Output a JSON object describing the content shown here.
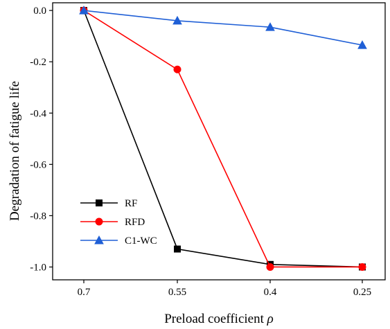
{
  "chart_data": {
    "type": "line",
    "title": "",
    "xlabel": "Preload coefficient",
    "xlabel_symbol": "ρ",
    "ylabel": "Degradation of fatigue life",
    "categories": [
      "0.7",
      "0.55",
      "0.4",
      "0.25"
    ],
    "yticks": [
      "0.0",
      "-0.2",
      "-0.4",
      "-0.6",
      "-0.8",
      "-1.0"
    ],
    "ylim": [
      -1.05,
      0.03
    ],
    "grid": false,
    "legend_position": "bottom-left",
    "series": [
      {
        "name": "RF",
        "color": "#000000",
        "marker": "square",
        "values": [
          0.0,
          -0.93,
          -0.99,
          -1.0
        ]
      },
      {
        "name": "RFD",
        "color": "#ff0000",
        "marker": "circle",
        "values": [
          0.0,
          -0.23,
          -1.0,
          -1.0
        ]
      },
      {
        "name": "C1-WC",
        "color": "#1f5fd6",
        "marker": "triangle",
        "values": [
          0.0,
          -0.04,
          -0.065,
          -0.135
        ]
      }
    ]
  }
}
